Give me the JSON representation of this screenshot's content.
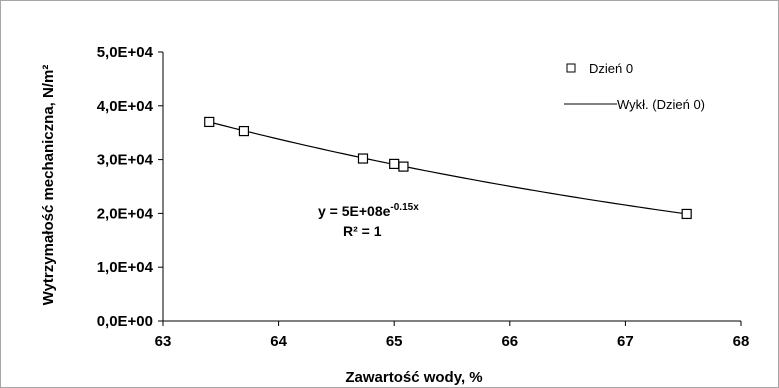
{
  "chart_data": {
    "type": "scatter",
    "title": "",
    "xlabel": "Zawartość wody, %",
    "ylabel": "Wytrzymałość mechaniczna, N/m²",
    "xlim": [
      63,
      68
    ],
    "ylim": [
      0,
      50000
    ],
    "x_ticks": [
      63,
      64,
      65,
      66,
      67,
      68
    ],
    "x_tick_labels": [
      "63",
      "64",
      "65",
      "66",
      "67",
      "68"
    ],
    "y_ticks": [
      0,
      10000,
      20000,
      30000,
      40000,
      50000
    ],
    "y_tick_labels": [
      "0,0E+00",
      "1,0E+04",
      "2,0E+04",
      "3,0E+04",
      "4,0E+04",
      "5,0E+04"
    ],
    "grid": false,
    "legend_position": "top-right",
    "series": [
      {
        "name": "Dzień 0",
        "marker": "hollow-square",
        "x": [
          63.4,
          63.7,
          64.73,
          65.0,
          65.08,
          67.53
        ],
        "y": [
          37000,
          35300,
          30200,
          29200,
          28700,
          19900
        ]
      }
    ],
    "trendline": {
      "name": "Wykł. (Dzień 0)",
      "type": "exponential",
      "a": 500000000,
      "b": -0.15,
      "x_range": [
        63.4,
        67.53
      ]
    },
    "annotations": {
      "equation_prefix": "y = 5E+08e",
      "equation_exponent": "-0.15x",
      "r_squared": "R² = 1"
    },
    "colors": {
      "series": "#000000",
      "frame": "#a6a6a6"
    }
  }
}
